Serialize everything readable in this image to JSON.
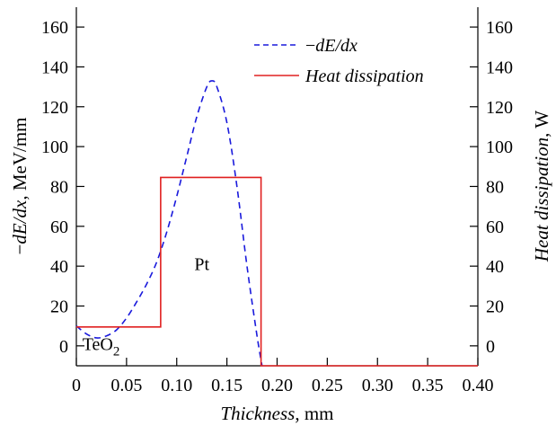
{
  "chart_data": {
    "type": "line",
    "xlabel": {
      "italic": "Thickness",
      "rest": ", mm"
    },
    "ylabel_left": {
      "prefix": "−",
      "italic": "dE/dx",
      "rest": ", MeV/mm"
    },
    "ylabel_right": {
      "italic": "Heat dissipation",
      "rest": ", W"
    },
    "xlim": [
      0,
      0.4
    ],
    "ylim_left": [
      -10,
      165
    ],
    "ylim_right": [
      -10,
      165
    ],
    "x_ticks": [
      {
        "v": 0,
        "label": "0"
      },
      {
        "v": 0.05,
        "label": "0.05"
      },
      {
        "v": 0.1,
        "label": "0.10"
      },
      {
        "v": 0.15,
        "label": "0.15"
      },
      {
        "v": 0.2,
        "label": "0.20"
      },
      {
        "v": 0.25,
        "label": "0.25"
      },
      {
        "v": 0.3,
        "label": "0.30"
      },
      {
        "v": 0.35,
        "label": "0.35"
      },
      {
        "v": 0.4,
        "label": "0.40"
      }
    ],
    "y_ticks_left": [
      {
        "v": 0,
        "label": "0"
      },
      {
        "v": 20,
        "label": "20"
      },
      {
        "v": 40,
        "label": "40"
      },
      {
        "v": 60,
        "label": "60"
      },
      {
        "v": 80,
        "label": "80"
      },
      {
        "v": 100,
        "label": "100"
      },
      {
        "v": 120,
        "label": "120"
      },
      {
        "v": 140,
        "label": "140"
      },
      {
        "v": 160,
        "label": "160"
      }
    ],
    "y_ticks_right": [
      {
        "v": 0,
        "label": "0"
      },
      {
        "v": 20,
        "label": "20"
      },
      {
        "v": 40,
        "label": "40"
      },
      {
        "v": 60,
        "label": "60"
      },
      {
        "v": 80,
        "label": "80"
      },
      {
        "v": 100,
        "label": "100"
      },
      {
        "v": 120,
        "label": "120"
      },
      {
        "v": 140,
        "label": "140"
      },
      {
        "v": 160,
        "label": "160"
      }
    ],
    "series": [
      {
        "name": "−dE/dx",
        "name_prefix": "−",
        "name_italic": "dE/dx",
        "style": "dashed",
        "color": "#1a1adc",
        "axis": "left",
        "x": [
          0,
          0.01,
          0.02,
          0.03,
          0.04,
          0.05,
          0.06,
          0.07,
          0.08,
          0.09,
          0.1,
          0.11,
          0.12,
          0.13,
          0.135,
          0.14,
          0.15,
          0.16,
          0.17,
          0.18,
          0.185
        ],
        "y": [
          10,
          6,
          4,
          5,
          8,
          14,
          22,
          31,
          42,
          57,
          75,
          95,
          115,
          130,
          133,
          130,
          112,
          80,
          40,
          5,
          -10
        ]
      },
      {
        "name": "Heat dissipation",
        "name_italic": "Heat dissipation",
        "style": "solid",
        "color": "#e02020",
        "axis": "right",
        "x": [
          0,
          0.084,
          0.084,
          0.184,
          0.184,
          0.4
        ],
        "y": [
          9.5,
          9.5,
          84.5,
          84.5,
          -10,
          -10
        ]
      }
    ],
    "annotations": [
      {
        "text": "Pt",
        "x": 0.125,
        "y": 38,
        "anchor": "middle"
      },
      {
        "text": "TeO",
        "sub": "2",
        "x": 0.006,
        "y": -2,
        "anchor": "start"
      }
    ],
    "legend_placement": "top-right",
    "grid": false
  }
}
